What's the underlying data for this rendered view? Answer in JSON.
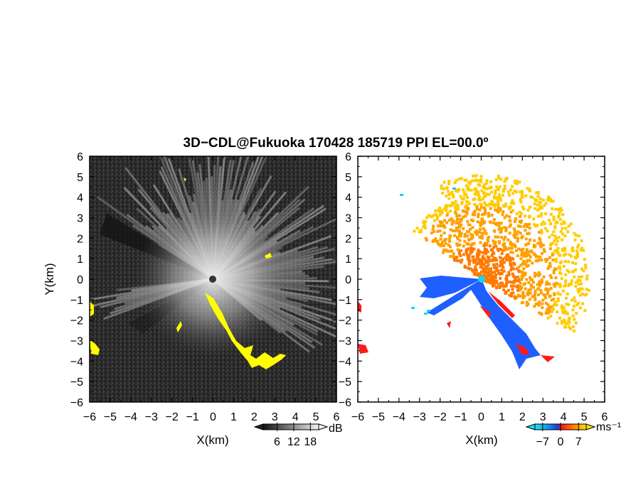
{
  "title": "3D−CDL@Fukuoka 170428 185719 PPI EL=00.0º",
  "colors": {
    "yellow": "#ffff00",
    "blue": "#1f5fff",
    "cyan": "#19d3f0",
    "red": "#ff1a1a",
    "orange": "#ff7a00",
    "gold": "#ffcc00"
  },
  "chart_data": [
    {
      "type": "heatmap",
      "panel": "left",
      "quantity": "signal-to-noise ratio",
      "title": "3D−CDL@Fukuoka 170428 185719 PPI EL=00.0º",
      "xlabel": "X(km)",
      "ylabel": "Y(km)",
      "xlim": [
        -6,
        6
      ],
      "ylim": [
        -6,
        6
      ],
      "x_ticks": [
        "−6",
        "−5",
        "−4",
        "−3",
        "−2",
        "−1",
        "0",
        "1",
        "2",
        "3",
        "4",
        "5",
        "6"
      ],
      "y_ticks": [
        "6",
        "5",
        "4",
        "3",
        "2",
        "1",
        "0",
        "−1",
        "−2",
        "−3",
        "−4",
        "−5",
        "−6"
      ],
      "colorbar": {
        "unit": "dB",
        "tick_labels": [
          "6",
          "12",
          "18"
        ],
        "ticks": [
          6,
          12,
          18
        ]
      }
    },
    {
      "type": "heatmap",
      "panel": "right",
      "quantity": "Doppler velocity",
      "xlabel": "X(km)",
      "xlim": [
        -6,
        6
      ],
      "ylim": [
        -6,
        6
      ],
      "x_ticks": [
        "−6",
        "−5",
        "−4",
        "−3",
        "−2",
        "−1",
        "0",
        "1",
        "2",
        "3",
        "4",
        "5",
        "6"
      ],
      "y_ticks": [
        "6",
        "5",
        "4",
        "3",
        "2",
        "1",
        "0",
        "−1",
        "−2",
        "−3",
        "−4",
        "−5",
        "−6"
      ],
      "colorbar": {
        "unit": "ms⁻¹",
        "tick_labels": [
          "−7",
          "0",
          "7"
        ],
        "ticks": [
          -7,
          0,
          7
        ]
      }
    }
  ]
}
